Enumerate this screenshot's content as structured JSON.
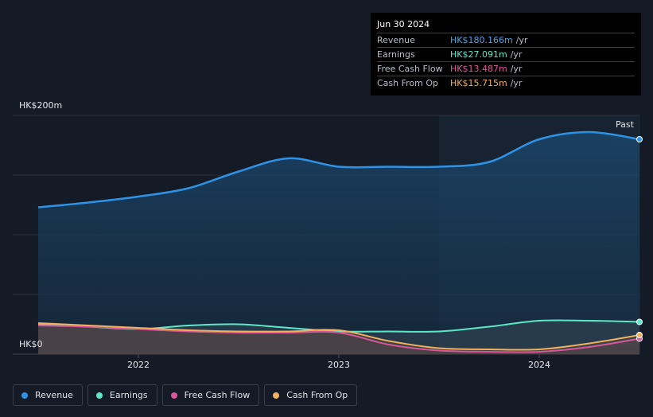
{
  "tooltip": {
    "date": "Jun 30 2024",
    "rows": [
      {
        "label": "Revenue",
        "value": "HK$180.166m",
        "unit": "/yr",
        "color": "#4aa3e8"
      },
      {
        "label": "Earnings",
        "value": "HK$27.091m",
        "unit": "/yr",
        "color": "#5ee6c9"
      },
      {
        "label": "Free Cash Flow",
        "value": "HK$13.487m",
        "unit": "/yr",
        "color": "#e0589c"
      },
      {
        "label": "Cash From Op",
        "value": "HK$15.715m",
        "unit": "/yr",
        "color": "#f0b15a"
      }
    ]
  },
  "chart_data": {
    "type": "area",
    "ylabel_top": "HK$200m",
    "ylabel_bottom": "HK$0",
    "ylim": [
      0,
      200
    ],
    "xlim": [
      2021.5,
      2024.5
    ],
    "past_label": "Past",
    "x_ticks": [
      "2022",
      "2023",
      "2024"
    ],
    "series": [
      {
        "name": "Revenue",
        "color": "#2e93e6",
        "points": [
          [
            2021.5,
            123
          ],
          [
            2021.75,
            127
          ],
          [
            2022.0,
            132
          ],
          [
            2022.25,
            139
          ],
          [
            2022.5,
            153
          ],
          [
            2022.75,
            164
          ],
          [
            2023.0,
            157
          ],
          [
            2023.25,
            157
          ],
          [
            2023.5,
            157
          ],
          [
            2023.75,
            161
          ],
          [
            2024.0,
            180
          ],
          [
            2024.25,
            186
          ],
          [
            2024.5,
            180
          ]
        ]
      },
      {
        "name": "Earnings",
        "color": "#5ee6c9",
        "points": [
          [
            2021.5,
            25
          ],
          [
            2021.75,
            23
          ],
          [
            2022.0,
            21
          ],
          [
            2022.25,
            24
          ],
          [
            2022.5,
            25
          ],
          [
            2022.75,
            22
          ],
          [
            2023.0,
            19
          ],
          [
            2023.25,
            19
          ],
          [
            2023.5,
            19
          ],
          [
            2023.75,
            23
          ],
          [
            2024.0,
            28
          ],
          [
            2024.25,
            28
          ],
          [
            2024.5,
            27
          ]
        ]
      },
      {
        "name": "Free Cash Flow",
        "color": "#d9569a",
        "points": [
          [
            2021.5,
            24
          ],
          [
            2021.75,
            23
          ],
          [
            2022.0,
            21
          ],
          [
            2022.25,
            19
          ],
          [
            2022.5,
            18
          ],
          [
            2022.75,
            18
          ],
          [
            2023.0,
            18
          ],
          [
            2023.25,
            8
          ],
          [
            2023.5,
            3
          ],
          [
            2023.75,
            2
          ],
          [
            2024.0,
            2
          ],
          [
            2024.25,
            6
          ],
          [
            2024.5,
            13
          ]
        ]
      },
      {
        "name": "Cash From Op",
        "color": "#f0b15a",
        "points": [
          [
            2021.5,
            26
          ],
          [
            2021.75,
            24
          ],
          [
            2022.0,
            22
          ],
          [
            2022.25,
            20
          ],
          [
            2022.5,
            19
          ],
          [
            2022.75,
            19
          ],
          [
            2023.0,
            20
          ],
          [
            2023.25,
            11
          ],
          [
            2023.5,
            5
          ],
          [
            2023.75,
            4
          ],
          [
            2024.0,
            4
          ],
          [
            2024.25,
            9
          ],
          [
            2024.5,
            16
          ]
        ]
      }
    ]
  },
  "legend": [
    {
      "label": "Revenue",
      "color": "#2e93e6"
    },
    {
      "label": "Earnings",
      "color": "#5ee6c9"
    },
    {
      "label": "Free Cash Flow",
      "color": "#d9569a"
    },
    {
      "label": "Cash From Op",
      "color": "#f0b15a"
    }
  ]
}
